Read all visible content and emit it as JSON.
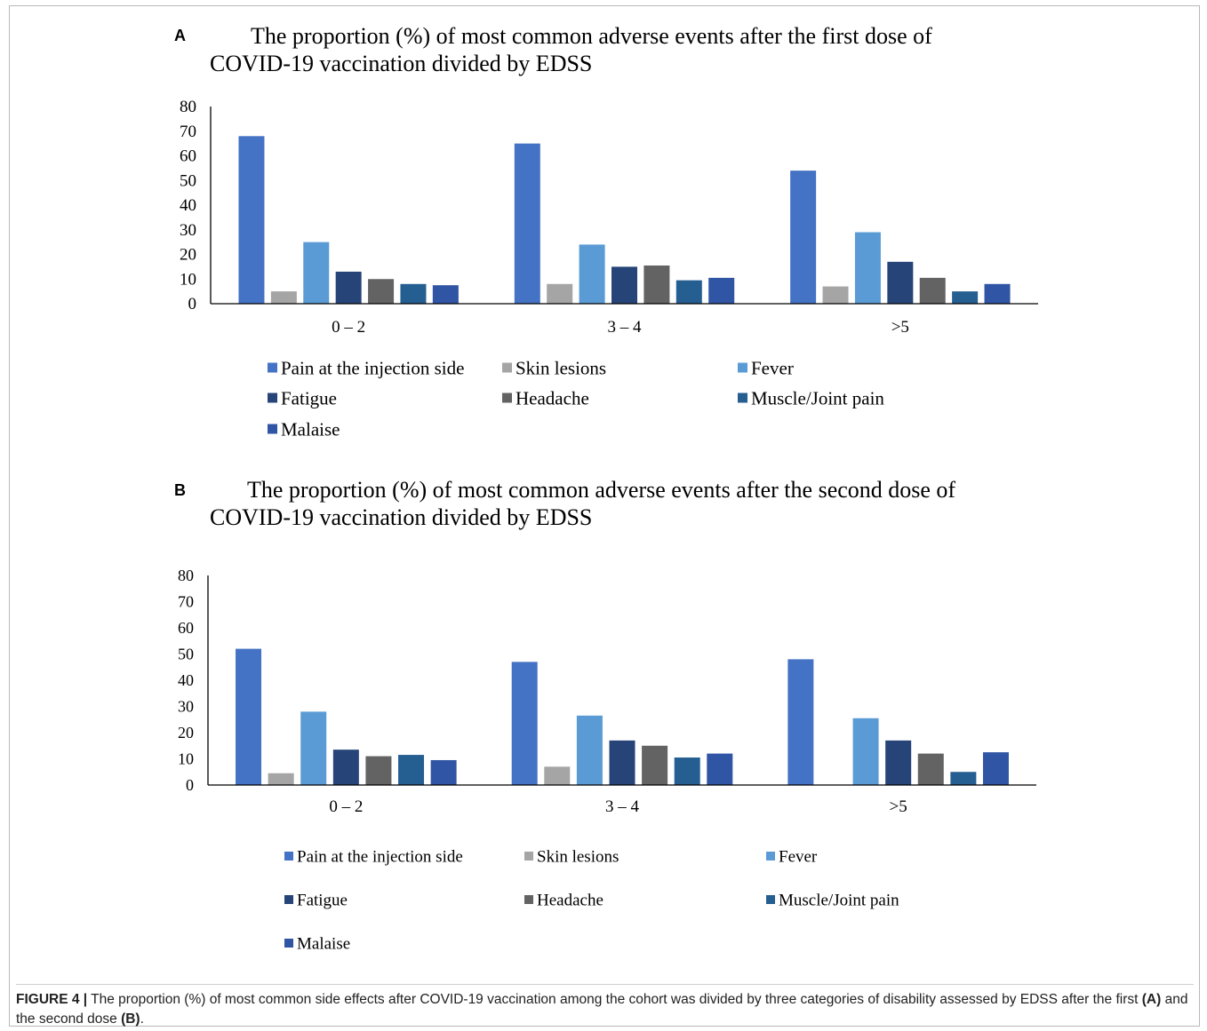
{
  "colors": {
    "series": [
      "#4472C4",
      "#A5A5A5",
      "#5B9BD5",
      "#264478",
      "#636363",
      "#255E91",
      "#2F55A4"
    ],
    "axis": "#000000"
  },
  "caption": {
    "label": "FIGURE 4 |",
    "part1": " The proportion (%) of most common side effects after COVID-19 vaccination among the cohort was divided by three categories of disability assessed by EDSS after the first ",
    "ref_a": "(A)",
    "part2": " and the second dose ",
    "ref_b": "(B)",
    "part3": "."
  },
  "chart_data": [
    {
      "panel": "A",
      "type": "bar",
      "title": "The proportion (%) of most common adverse events after the first dose of COVID-19 vaccination divided by EDSS",
      "categories": [
        "0 – 2",
        "3 – 4",
        ">5"
      ],
      "ylim": [
        0,
        80
      ],
      "yticks": [
        "0",
        "10",
        "20",
        "30",
        "40",
        "50",
        "60",
        "70",
        "80"
      ],
      "legend_position": "bottom",
      "grid": false,
      "series": [
        {
          "name": "Pain at the injection side",
          "values": [
            68,
            65,
            54
          ]
        },
        {
          "name": "Skin lesions",
          "values": [
            5,
            8,
            7
          ]
        },
        {
          "name": "Fever",
          "values": [
            25,
            24,
            29
          ]
        },
        {
          "name": "Fatigue",
          "values": [
            13,
            15,
            17
          ]
        },
        {
          "name": "Headache",
          "values": [
            10,
            15.5,
            10.5
          ]
        },
        {
          "name": "Muscle/Joint pain",
          "values": [
            8,
            9.5,
            5
          ]
        },
        {
          "name": "Malaise",
          "values": [
            7.5,
            10.5,
            8
          ]
        }
      ]
    },
    {
      "panel": "B",
      "type": "bar",
      "title": "The proportion (%) of most common adverse events after the second dose of COVID-19 vaccination divided by EDSS",
      "categories": [
        "0 – 2",
        "3 – 4",
        ">5"
      ],
      "ylim": [
        0,
        80
      ],
      "yticks": [
        "0",
        "10",
        "20",
        "30",
        "40",
        "50",
        "60",
        "70",
        "80"
      ],
      "legend_position": "bottom",
      "grid": false,
      "series": [
        {
          "name": "Pain at the injection side",
          "values": [
            52,
            47,
            48
          ]
        },
        {
          "name": "Skin lesions",
          "values": [
            4.5,
            7,
            0
          ]
        },
        {
          "name": "Fever",
          "values": [
            28,
            26.5,
            25.5
          ]
        },
        {
          "name": "Fatigue",
          "values": [
            13.5,
            17,
            17
          ]
        },
        {
          "name": "Headache",
          "values": [
            11,
            15,
            12
          ]
        },
        {
          "name": "Muscle/Joint pain",
          "values": [
            11.5,
            10.5,
            5
          ]
        },
        {
          "name": "Malaise",
          "values": [
            9.5,
            12,
            12.5
          ]
        }
      ]
    }
  ]
}
